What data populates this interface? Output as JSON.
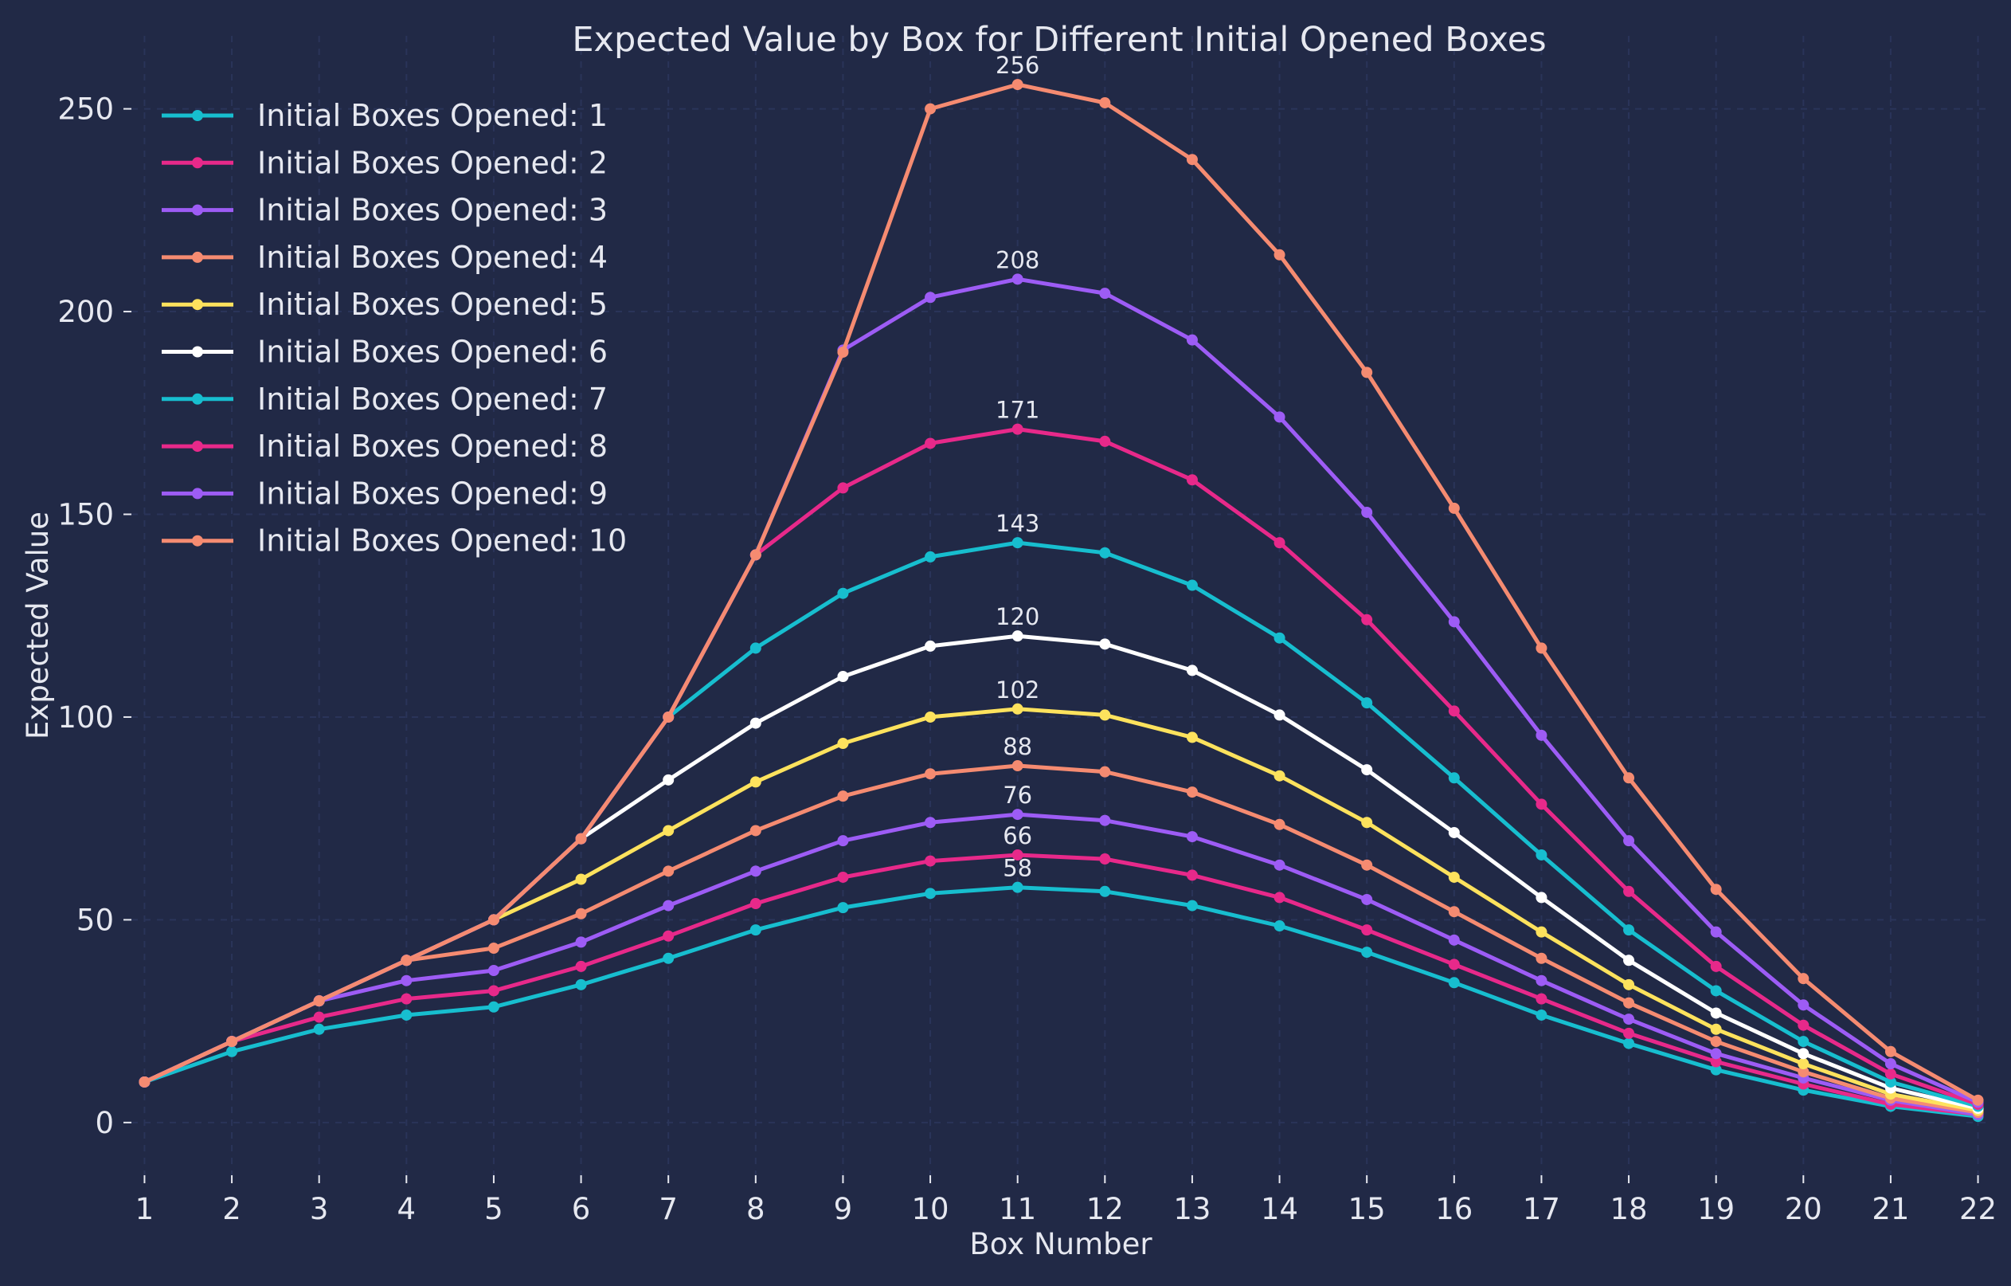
{
  "chart_data": {
    "type": "line",
    "title": "Expected Value by Box for Different Initial Opened Boxes",
    "xlabel": "Box Number",
    "ylabel": "Expected Value",
    "x": [
      1,
      2,
      3,
      4,
      5,
      6,
      7,
      8,
      9,
      10,
      11,
      12,
      13,
      14,
      15,
      16,
      17,
      18,
      19,
      20,
      21,
      22
    ],
    "xlim": [
      0.85,
      22.15
    ],
    "ylim": [
      -13,
      268
    ],
    "yticks": [
      0,
      50,
      100,
      150,
      200,
      250
    ],
    "grid": true,
    "legend": "top-left",
    "series": [
      {
        "name": "Initial Boxes Opened: 1",
        "color": "#17becf",
        "peak_label": "58",
        "values": [
          10,
          17.5,
          23,
          26.5,
          28.5,
          34,
          40.5,
          47.5,
          53,
          56.5,
          58,
          57,
          53.5,
          48.5,
          42,
          34.5,
          26.5,
          19.5,
          13,
          8,
          4,
          1.5
        ]
      },
      {
        "name": "Initial Boxes Opened: 2",
        "color": "#e7298a",
        "peak_label": "66",
        "values": [
          10,
          20,
          26,
          30.5,
          32.5,
          38.5,
          46,
          54,
          60.5,
          64.5,
          66,
          65,
          61,
          55.5,
          47.5,
          39,
          30.5,
          22,
          15,
          9.5,
          4.5,
          2
        ]
      },
      {
        "name": "Initial Boxes Opened: 3",
        "color": "#9d5cf5",
        "peak_label": "76",
        "values": [
          10,
          20,
          30,
          35,
          37.5,
          44.5,
          53.5,
          62,
          69.5,
          74,
          76,
          74.5,
          70.5,
          63.5,
          55,
          45,
          35,
          25.5,
          17,
          11,
          5.5,
          2
        ]
      },
      {
        "name": "Initial Boxes Opened: 4",
        "color": "#f58b71",
        "peak_label": "88",
        "values": [
          10,
          20,
          30,
          40,
          43,
          51.5,
          62,
          72,
          80.5,
          86,
          88,
          86.5,
          81.5,
          73.5,
          63.5,
          52,
          40.5,
          29.5,
          20,
          12.5,
          6,
          2.5
        ]
      },
      {
        "name": "Initial Boxes Opened: 5",
        "color": "#fde25d",
        "peak_label": "102",
        "values": [
          10,
          20,
          30,
          40,
          50,
          60,
          72,
          84,
          93.5,
          100,
          102,
          100.5,
          95,
          85.5,
          74,
          60.5,
          47,
          34,
          23,
          14.5,
          7,
          3
        ]
      },
      {
        "name": "Initial Boxes Opened: 6",
        "color": "#ffffff",
        "peak_label": "120",
        "values": [
          10,
          20,
          30,
          40,
          50,
          70,
          84.5,
          98.5,
          110,
          117.5,
          120,
          118,
          111.5,
          100.5,
          87,
          71.5,
          55.5,
          40,
          27,
          17,
          8.5,
          3.5
        ]
      },
      {
        "name": "Initial Boxes Opened: 7",
        "color": "#17becf",
        "peak_label": "143",
        "values": [
          10,
          20,
          30,
          40,
          50,
          70,
          100,
          117,
          130.5,
          139.5,
          143,
          140.5,
          132.5,
          119.5,
          103.5,
          85,
          66,
          47.5,
          32.5,
          20,
          10,
          4
        ]
      },
      {
        "name": "Initial Boxes Opened: 8",
        "color": "#e7298a",
        "peak_label": "171",
        "values": [
          10,
          20,
          30,
          40,
          50,
          70,
          100,
          140,
          156.5,
          167.5,
          171,
          168,
          158.5,
          143,
          124,
          101.5,
          78.5,
          57,
          38.5,
          24,
          12,
          4.5
        ]
      },
      {
        "name": "Initial Boxes Opened: 9",
        "color": "#9d5cf5",
        "peak_label": "208",
        "values": [
          10,
          20,
          30,
          40,
          50,
          70,
          100,
          140,
          190.5,
          203.5,
          208,
          204.5,
          193,
          174,
          150.5,
          123.5,
          95.5,
          69.5,
          47,
          29,
          14.5,
          5
        ]
      },
      {
        "name": "Initial Boxes Opened: 10",
        "color": "#f58b71",
        "peak_label": "256",
        "values": [
          10,
          20,
          30,
          40,
          50,
          70,
          100,
          140,
          190,
          250,
          256,
          251.5,
          237.5,
          214,
          185,
          151.5,
          117,
          85,
          57.5,
          35.5,
          17.5,
          5.5
        ]
      }
    ]
  }
}
